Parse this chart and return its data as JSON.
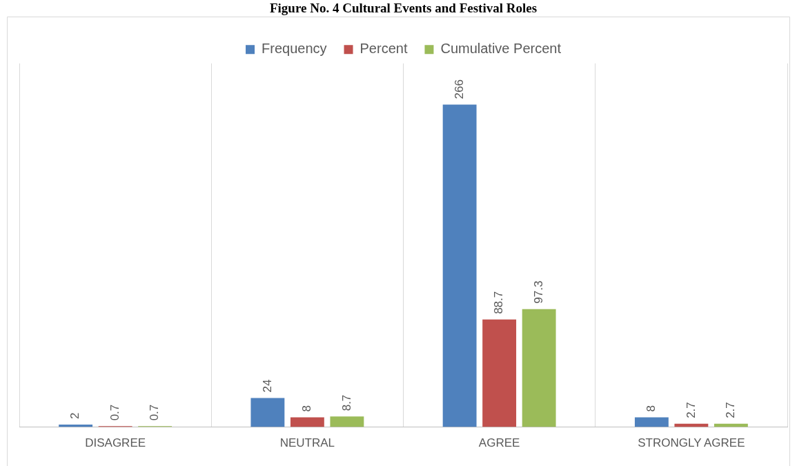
{
  "chart_data": {
    "type": "bar",
    "title": "Figure No. 4 Cultural Events and Festival Roles",
    "categories": [
      "DISAGREE",
      "NEUTRAL",
      "AGREE",
      "STRONGLY AGREE"
    ],
    "series": [
      {
        "name": "Frequency",
        "color": "#4f81bd",
        "values": [
          2,
          24,
          266,
          8
        ]
      },
      {
        "name": "Percent",
        "color": "#c0504d",
        "values": [
          0.7,
          8,
          88.7,
          2.7
        ]
      },
      {
        "name": "Cumulative Percent",
        "color": "#9bbb59",
        "values": [
          0.7,
          8.7,
          97.3,
          2.7
        ]
      }
    ],
    "ylim": [
      0,
      300
    ],
    "tick_labels": "x",
    "grid": "x",
    "legend": "top",
    "data_labels": true
  }
}
